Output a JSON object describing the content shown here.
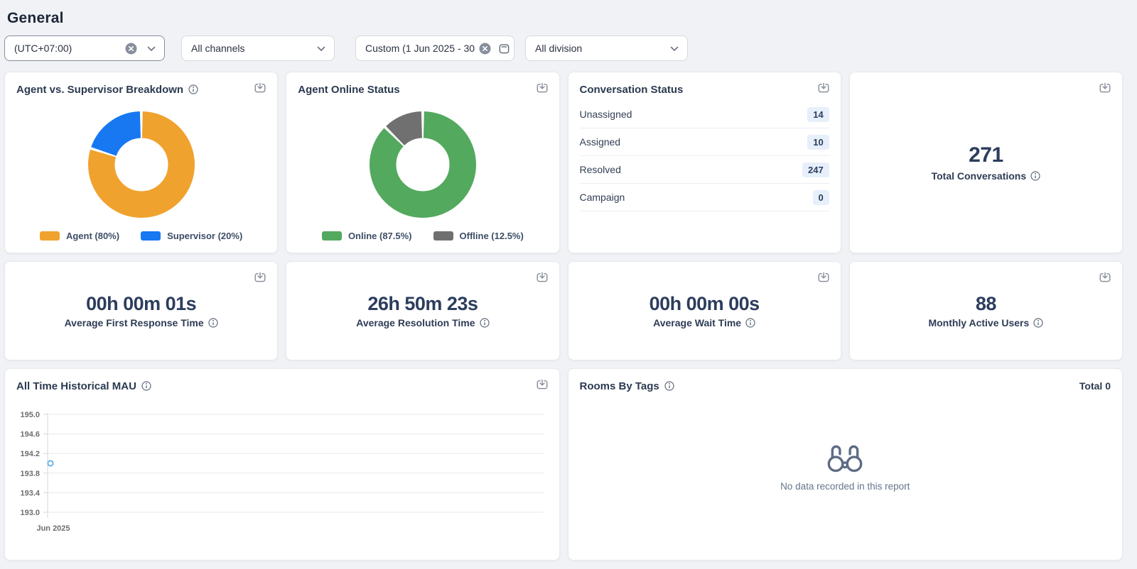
{
  "header": {
    "title": "General"
  },
  "filters": {
    "timezone": {
      "value": "(UTC+07:00)"
    },
    "channels": {
      "value": "All channels"
    },
    "date_range": {
      "value": "Custom (1 Jun 2025 - 30"
    },
    "division": {
      "value": "All division"
    }
  },
  "cards": {
    "agent_breakdown": {
      "title": "Agent vs. Supervisor Breakdown",
      "legend": [
        "Agent (80%)",
        "Supervisor (20%)"
      ]
    },
    "agent_online": {
      "title": "Agent Online Status",
      "legend": [
        "Online (87.5%)",
        "Offline (12.5%)"
      ]
    },
    "conversation_status": {
      "title": "Conversation Status",
      "rows": [
        {
          "label": "Unassigned",
          "value": "14"
        },
        {
          "label": "Assigned",
          "value": "10"
        },
        {
          "label": "Resolved",
          "value": "247"
        },
        {
          "label": "Campaign",
          "value": "0"
        }
      ]
    },
    "total_conversations": {
      "value": "271",
      "label": "Total Conversations"
    },
    "avg_first_response": {
      "value": "00h 00m 01s",
      "label": "Average First Response Time"
    },
    "avg_resolution": {
      "value": "26h 50m 23s",
      "label": "Average Resolution Time"
    },
    "avg_wait": {
      "value": "00h 00m 00s",
      "label": "Average Wait Time"
    },
    "monthly_active_users": {
      "value": "88",
      "label": "Monthly Active Users"
    },
    "historical_mau": {
      "title": "All Time Historical MAU"
    },
    "rooms_by_tags": {
      "title": "Rooms By Tags",
      "total": "Total 0",
      "empty_text": "No data recorded in this report"
    }
  },
  "colors": {
    "agent_orange": "#F0A22E",
    "supervisor_blue": "#1778F2",
    "online_green": "#53A95E",
    "offline_gray": "#707070",
    "marker_blue": "#6FB3E8",
    "badge_bg": "#E7EFFB",
    "page_bg": "#F0F2F5"
  },
  "chart_data": [
    {
      "type": "pie",
      "variant": "donut",
      "title": "Agent vs. Supervisor Breakdown",
      "unit": "%",
      "legend_position": "bottom",
      "series": [
        {
          "name": "Agent",
          "value": 80,
          "color": "#F0A22E"
        },
        {
          "name": "Supervisor",
          "value": 20,
          "color": "#1778F2"
        }
      ]
    },
    {
      "type": "pie",
      "variant": "donut",
      "title": "Agent Online Status",
      "unit": "%",
      "legend_position": "bottom",
      "series": [
        {
          "name": "Online",
          "value": 87.5,
          "color": "#53A95E"
        },
        {
          "name": "Offline",
          "value": 12.5,
          "color": "#707070"
        }
      ]
    },
    {
      "type": "line",
      "title": "All Time Historical MAU",
      "x": [
        "Jun 2025"
      ],
      "values": [
        194
      ],
      "ylim": [
        193.0,
        195.0
      ],
      "yticks": [
        "195.0",
        "194.6",
        "194.2",
        "193.8",
        "193.4",
        "193.0"
      ],
      "grid": true,
      "marker_color": "#6FB3E8"
    }
  ]
}
